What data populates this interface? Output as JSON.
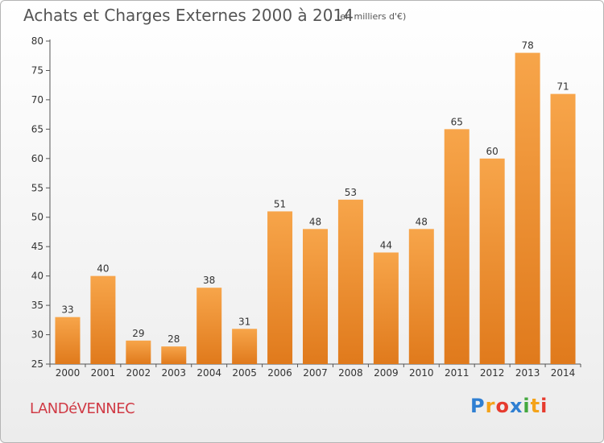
{
  "header": {
    "title": "Achats et Charges Externes 2000 à 2014",
    "subtitle": "(en milliers d'€)"
  },
  "footer": {
    "commune": "LANDéVENNEC",
    "logo_letters": [
      "P",
      "r",
      "o",
      "x",
      "i",
      "t",
      "i"
    ]
  },
  "colors": {
    "bar_light": "#f7a54a",
    "bar_dark": "#e07a1c",
    "axis": "#555555",
    "title": "#555555",
    "commune": "#d03a45"
  },
  "chart_data": {
    "type": "bar",
    "title": "Achats et Charges Externes 2000 à 2014",
    "subtitle": "(en milliers d'€)",
    "xlabel": "",
    "ylabel": "",
    "categories": [
      "2000",
      "2001",
      "2002",
      "2003",
      "2004",
      "2005",
      "2006",
      "2007",
      "2008",
      "2009",
      "2010",
      "2011",
      "2012",
      "2013",
      "2014"
    ],
    "values": [
      33,
      40,
      29,
      28,
      38,
      31,
      51,
      48,
      53,
      44,
      48,
      65,
      60,
      78,
      71
    ],
    "ylim": [
      25,
      80
    ],
    "yticks": [
      25,
      30,
      35,
      40,
      45,
      50,
      55,
      60,
      65,
      70,
      75,
      80
    ],
    "grid": false,
    "legend": "none"
  }
}
